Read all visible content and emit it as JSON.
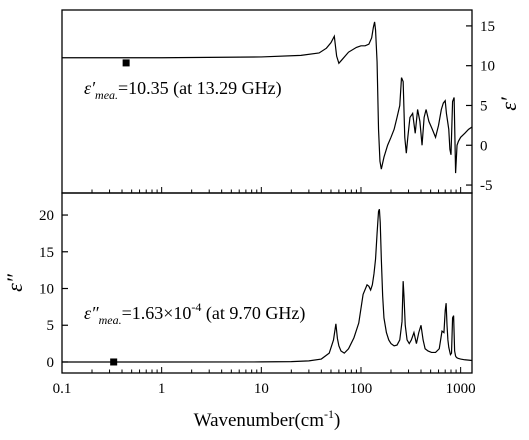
{
  "chart_data": [
    {
      "type": "line",
      "panel": "top",
      "ylabel": "ε′",
      "yaxis_side": "right",
      "ylim": [
        -6,
        17
      ],
      "yticks": [
        -5,
        0,
        5,
        10,
        15
      ],
      "xscale": "log",
      "xlim": [
        0.1,
        1300
      ],
      "annotation": {
        "prefix": "ε′",
        "subscript": "mea.",
        "text": "=10.35 (at 13.29 GHz)"
      },
      "marker": {
        "x": 0.44,
        "y": 10.35
      },
      "series": [
        {
          "x": [
            0.1,
            1,
            10,
            25,
            38,
            45,
            50,
            54,
            57,
            60,
            65,
            75,
            90,
            100,
            110,
            120,
            128,
            133,
            137,
            140,
            145,
            150,
            155,
            160,
            170,
            185,
            200,
            215,
            230,
            245,
            255,
            265,
            275,
            285,
            295,
            310,
            330,
            350,
            370,
            390,
            410,
            430,
            450,
            480,
            520,
            560,
            600,
            640,
            670,
            700,
            720,
            740,
            760,
            780,
            800,
            830,
            860,
            890,
            920,
            950,
            1000,
            1100,
            1200,
            1300
          ],
          "y": [
            11,
            11,
            11.1,
            11.3,
            11.6,
            12.2,
            12.9,
            13.7,
            11.2,
            10.3,
            10.8,
            11.7,
            12.3,
            12.5,
            12.5,
            12.7,
            13.5,
            14.8,
            15.5,
            14.5,
            10.5,
            2.0,
            -2.0,
            -3.0,
            -1.5,
            0.0,
            1.0,
            2.0,
            3.5,
            5.0,
            8.5,
            8.0,
            1.0,
            -1.0,
            1.0,
            3.5,
            4.0,
            1.5,
            4.5,
            3.0,
            0.0,
            3.5,
            4.5,
            3.0,
            2.0,
            1.0,
            2.5,
            4.5,
            5.3,
            5.6,
            4.0,
            3.0,
            2.0,
            -0.5,
            -1.2,
            5.5,
            6.0,
            -3.5,
            0.0,
            0.5,
            1.0,
            1.5,
            2.0,
            2.3
          ]
        }
      ]
    },
    {
      "type": "line",
      "panel": "bottom",
      "ylabel": "ε″",
      "yaxis_side": "left",
      "ylim": [
        -1.5,
        23
      ],
      "yticks": [
        0,
        5,
        10,
        15,
        20
      ],
      "xscale": "log",
      "xlim": [
        0.1,
        1300
      ],
      "xlabel": "Wavenumber(cm",
      "xlabel_sup": "-1",
      "xlabel_end": ")",
      "xtick_labels": [
        "0.1",
        "1",
        "10",
        "100",
        "1000"
      ],
      "annotation": {
        "prefix": "ε″",
        "subscript": "mea.",
        "text": "=1.63×10",
        "sup": "-4",
        "suffix": " (at 9.70 GHz)"
      },
      "marker": {
        "x": 0.33,
        "y": 0.0
      },
      "series": [
        {
          "x": [
            0.1,
            1,
            10,
            20,
            30,
            40,
            48,
            53,
            56,
            58,
            60,
            63,
            68,
            75,
            85,
            95,
            105,
            115,
            120,
            125,
            130,
            135,
            140,
            145,
            150,
            153,
            156,
            160,
            165,
            170,
            180,
            190,
            200,
            215,
            230,
            245,
            258,
            265,
            270,
            278,
            290,
            305,
            320,
            340,
            360,
            380,
            400,
            420,
            440,
            470,
            510,
            560,
            610,
            650,
            680,
            700,
            715,
            730,
            745,
            760,
            775,
            790,
            810,
            830,
            850,
            870,
            890,
            910,
            940,
            1000,
            1100,
            1200,
            1300
          ],
          "y": [
            0,
            0.001,
            0.01,
            0.05,
            0.15,
            0.4,
            1.2,
            3.0,
            5.2,
            3.2,
            2.2,
            1.5,
            1.2,
            1.8,
            3.3,
            5.3,
            9.2,
            10.5,
            10.3,
            9.8,
            10.5,
            12.0,
            14.0,
            17.5,
            20.5,
            20.8,
            19.0,
            14.0,
            9.0,
            6.0,
            4.0,
            3.0,
            2.5,
            2.2,
            2.3,
            3.0,
            5.5,
            11.0,
            9.0,
            5.0,
            3.0,
            2.5,
            3.0,
            4.0,
            2.5,
            4.0,
            5.0,
            3.0,
            1.8,
            1.5,
            1.3,
            1.3,
            1.8,
            4.2,
            4.0,
            7.0,
            8.0,
            5.0,
            3.0,
            2.0,
            1.5,
            1.0,
            1.2,
            6.0,
            6.3,
            1.5,
            0.8,
            0.6,
            0.5,
            0.4,
            0.3,
            0.25,
            0.2
          ]
        }
      ]
    }
  ]
}
